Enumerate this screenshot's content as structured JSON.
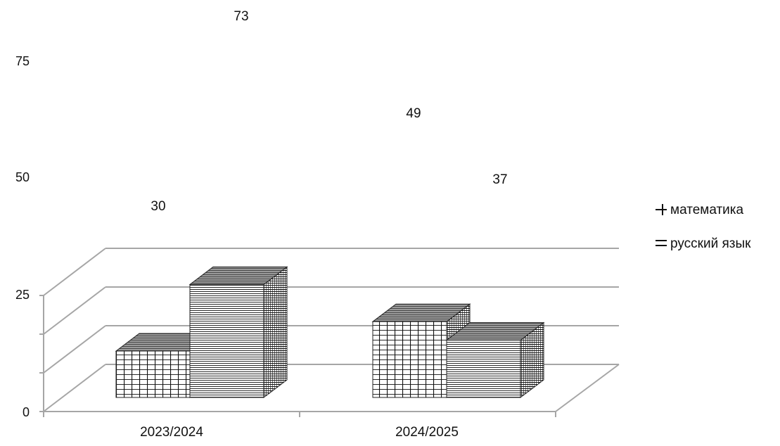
{
  "chart_data": {
    "type": "bar",
    "categories": [
      "2023/2024",
      "2024/2025"
    ],
    "series": [
      {
        "name": "математика",
        "values": [
          30,
          49
        ],
        "legend_marker": "+",
        "pattern": "grid"
      },
      {
        "name": "русский язык",
        "values": [
          73,
          37
        ],
        "legend_marker": "=",
        "pattern": "horizontal-lines"
      }
    ],
    "y_ticks": [
      "0",
      "25",
      "50",
      "75"
    ],
    "ylim": [
      0,
      75
    ],
    "title": "",
    "xlabel": "",
    "ylabel": "",
    "grid": true,
    "legend_position": "right",
    "style": "3d-clustered-column",
    "colors": {
      "axis": "#a6a6a6",
      "bar_fill": "#ffffff",
      "hatch": "#111111"
    }
  }
}
